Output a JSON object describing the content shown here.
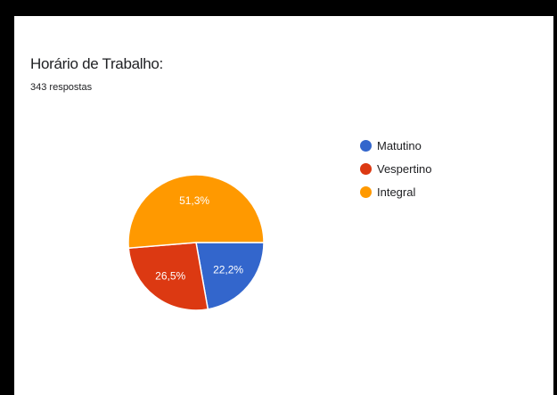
{
  "header": {
    "title": "Horário de Trabalho:",
    "subtitle": "343 respostas"
  },
  "chart_data": {
    "type": "pie",
    "title": "Horário de Trabalho:",
    "subtitle": "343 respostas",
    "categories": [
      "Matutino",
      "Vespertino",
      "Integral"
    ],
    "values": [
      22.2,
      26.5,
      51.3
    ],
    "labels": [
      "22,2%",
      "26,5%",
      "51,3%"
    ],
    "colors": [
      "#3366cc",
      "#dc3912",
      "#ff9900"
    ],
    "legend_position": "right"
  }
}
